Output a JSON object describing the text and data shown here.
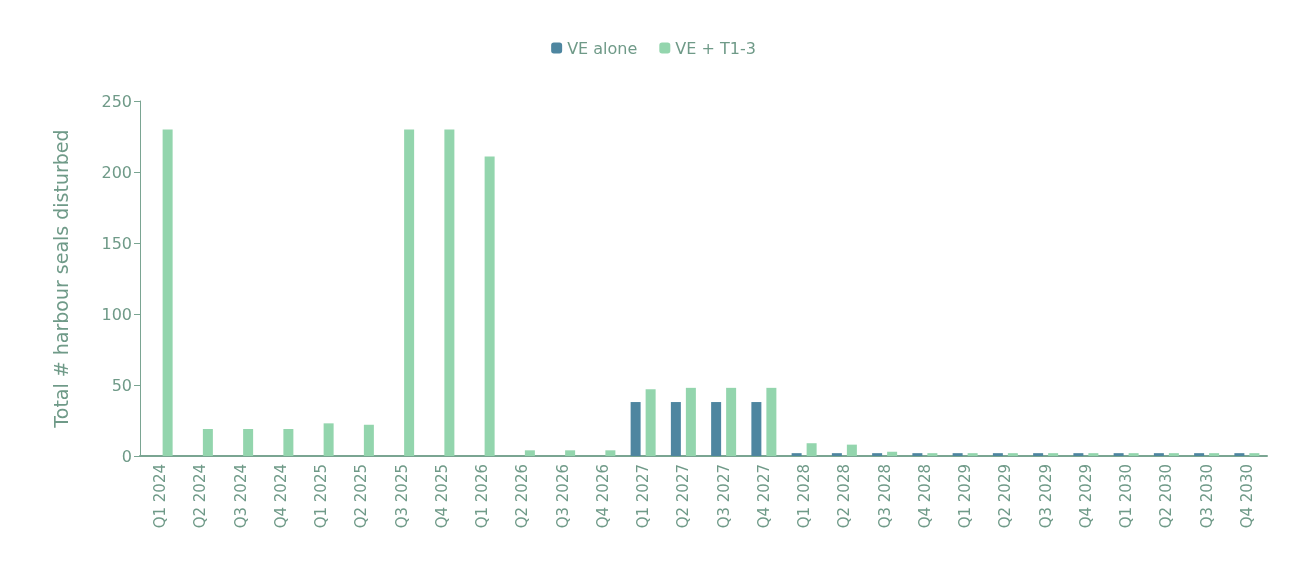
{
  "chart_data": {
    "type": "bar",
    "ylabel": "Total # harbour seals disturbed",
    "categories": [
      "Q1 2024",
      "Q2 2024",
      "Q3 2024",
      "Q4 2024",
      "Q1 2025",
      "Q2 2025",
      "Q3 2025",
      "Q4 2025",
      "Q1 2026",
      "Q2 2026",
      "Q3 2026",
      "Q4 2026",
      "Q1 2027",
      "Q2 2027",
      "Q3 2027",
      "Q4 2027",
      "Q1 2028",
      "Q2 2028",
      "Q3 2028",
      "Q4 2028",
      "Q1 2029",
      "Q2 2029",
      "Q3 2029",
      "Q4 2029",
      "Q1 2030",
      "Q2 2030",
      "Q3 2030",
      "Q4 2030"
    ],
    "series": [
      {
        "name": "VE alone",
        "color": "#4e86a0",
        "values": [
          0,
          0,
          0,
          0,
          0,
          0,
          0,
          0,
          0,
          0,
          0,
          0,
          38,
          38,
          38,
          38,
          2,
          2,
          2,
          2,
          2,
          2,
          2,
          2,
          2,
          2,
          2,
          2
        ]
      },
      {
        "name": "VE + T1-3",
        "color": "#93d5ad",
        "values": [
          230,
          19,
          19,
          19,
          23,
          22,
          230,
          230,
          211,
          4,
          4,
          4,
          47,
          48,
          48,
          48,
          9,
          8,
          3,
          2,
          2,
          2,
          2,
          2,
          2,
          2,
          2,
          2
        ]
      }
    ],
    "ylim": [
      0,
      250
    ],
    "yticks": [
      0,
      50,
      100,
      150,
      200,
      250
    ],
    "grid": false,
    "legend": "top"
  }
}
